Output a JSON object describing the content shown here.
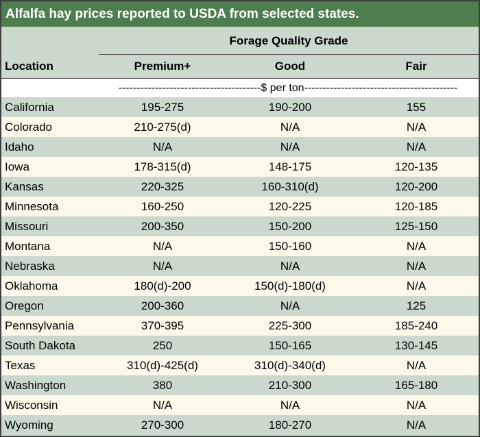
{
  "title": "Alfalfa hay prices reported to USDA from selected states.",
  "group_header": "Forage Quality Grade",
  "columns": {
    "location": "Location",
    "premium": "Premium+",
    "good": "Good",
    "fair": "Fair"
  },
  "units": "---------------------------------------$ per ton------------------------------------------",
  "rows": [
    {
      "location": "California",
      "premium": "195-275",
      "good": "190-200",
      "fair": "155"
    },
    {
      "location": "Colorado",
      "premium": "210-275(d)",
      "good": "N/A",
      "fair": "N/A"
    },
    {
      "location": "Idaho",
      "premium": "N/A",
      "good": "N/A",
      "fair": "N/A"
    },
    {
      "location": "Iowa",
      "premium": "178-315(d)",
      "good": "148-175",
      "fair": "120-135"
    },
    {
      "location": "Kansas",
      "premium": "220-325",
      "good": "160-310(d)",
      "fair": "120-200"
    },
    {
      "location": "Minnesota",
      "premium": "160-250",
      "good": "120-225",
      "fair": "120-185"
    },
    {
      "location": "Missouri",
      "premium": "200-350",
      "good": "150-200",
      "fair": "125-150"
    },
    {
      "location": "Montana",
      "premium": "N/A",
      "good": "150-160",
      "fair": "N/A"
    },
    {
      "location": "Nebraska",
      "premium": "N/A",
      "good": "N/A",
      "fair": "N/A"
    },
    {
      "location": "Oklahoma",
      "premium": "180(d)-200",
      "good": "150(d)-180(d)",
      "fair": "N/A"
    },
    {
      "location": "Oregon",
      "premium": "200-360",
      "good": "N/A",
      "fair": "125"
    },
    {
      "location": "Pennsylvania",
      "premium": "370-395",
      "good": "225-300",
      "fair": "185-240"
    },
    {
      "location": "South Dakota",
      "premium": "250",
      "good": "150-165",
      "fair": "130-145"
    },
    {
      "location": "Texas",
      "premium": "310(d)-425(d)",
      "good": "310(d)-340(d)",
      "fair": "N/A"
    },
    {
      "location": "Washington",
      "premium": "380",
      "good": "210-300",
      "fair": "165-180"
    },
    {
      "location": "Wisconsin",
      "premium": "N/A",
      "good": "N/A",
      "fair": "N/A"
    },
    {
      "location": "Wyoming",
      "premium": "270-300",
      "good": "180-270",
      "fair": "N/A"
    }
  ]
}
